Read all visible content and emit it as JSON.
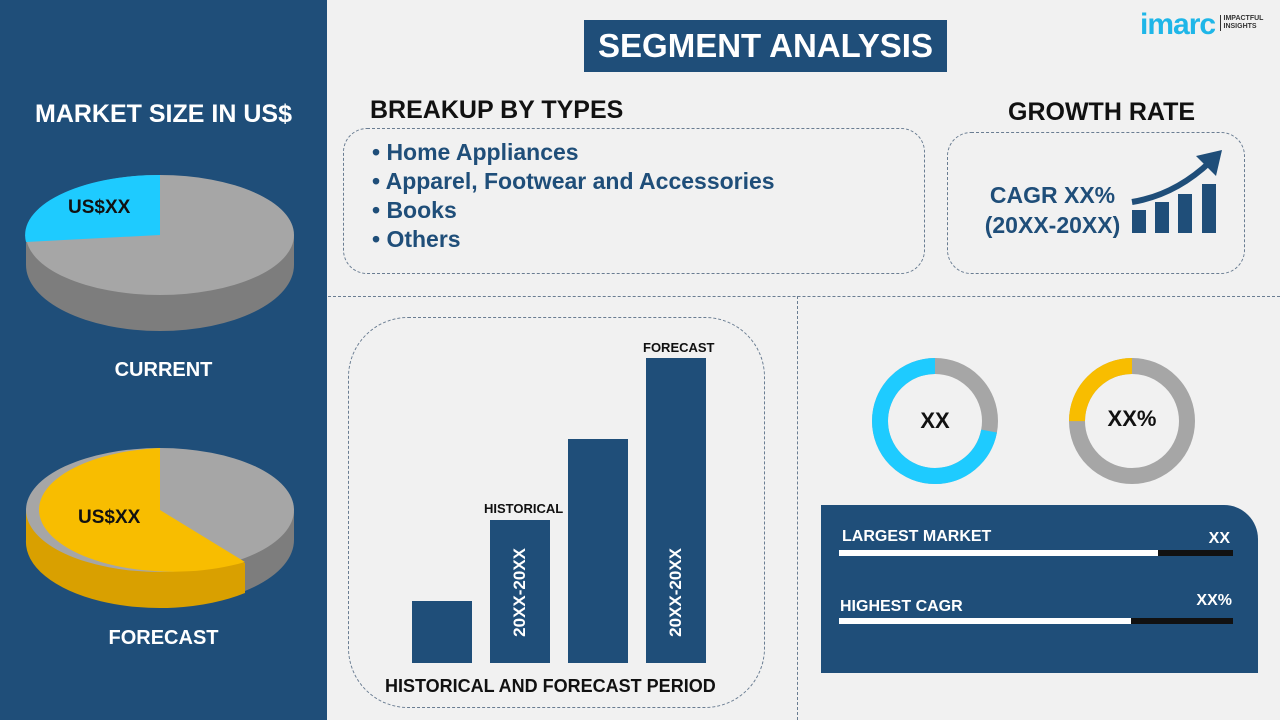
{
  "header": {
    "title": "SEGMENT ANALYSIS",
    "logo_text": "imarc",
    "logo_tagline": "IMPACTFUL INSIGHTS"
  },
  "left": {
    "title": "MARKET SIZE IN US$",
    "current": {
      "label": "CURRENT",
      "value": "US$XX",
      "colors": {
        "slice": "#1ecbff",
        "rest": "#a6a6a6"
      }
    },
    "forecast": {
      "label": "FORECAST",
      "value": "US$XX",
      "colors": {
        "slice": "#f8bd00",
        "rest": "#a6a6a6"
      }
    }
  },
  "breakup": {
    "title": "BREAKUP BY TYPES",
    "items": [
      "• Home Appliances",
      "• Apparel, Footwear and Accessories",
      "• Books",
      "• Others"
    ]
  },
  "growth": {
    "title": "GROWTH RATE",
    "cagr": "CAGR XX%",
    "period": "(20XX-20XX)"
  },
  "bars": {
    "caption": "HISTORICAL AND FORECAST PERIOD",
    "historical_label": "HISTORICAL",
    "forecast_label": "FORECAST",
    "historical_period": "20XX-20XX",
    "forecast_period": "20XX-20XX"
  },
  "donuts": [
    {
      "value": "XX",
      "fill_fraction": 0.72,
      "color": "#1ecbff"
    },
    {
      "value": "XX%",
      "fill_fraction": 0.25,
      "color": "#f8bd00"
    }
  ],
  "stats": [
    {
      "label": "LARGEST MARKET",
      "value": "XX",
      "fill_percent": 81
    },
    {
      "label": "HIGHEST CAGR",
      "value": "XX%",
      "fill_percent": 74
    }
  ]
}
